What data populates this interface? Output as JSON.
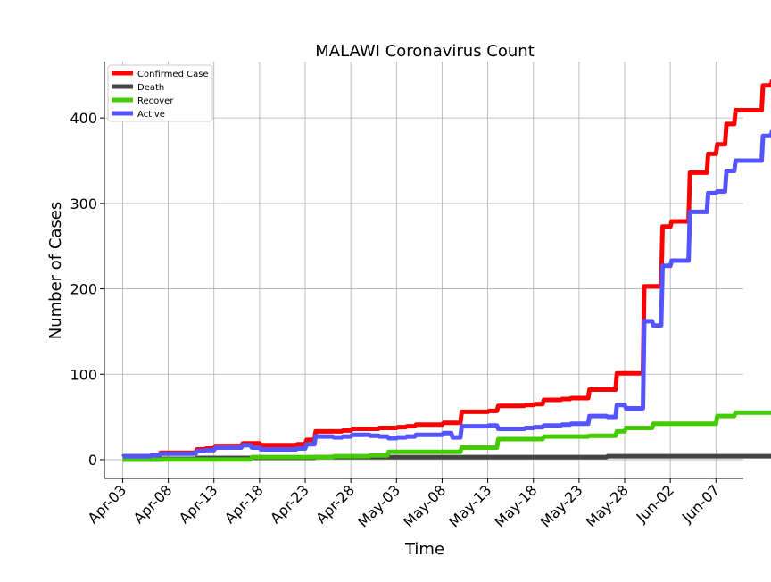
{
  "chart_data": {
    "type": "line",
    "title": "MALAWI Coronavirus Count",
    "xlabel": "Time",
    "ylabel": "Number of Cases",
    "x_start": "2020-04-03",
    "x_end": "2020-06-09",
    "xlim": [
      "2020-04-01",
      "2020-06-10"
    ],
    "ylim": [
      -22,
      466
    ],
    "grid": true,
    "legend_position": "top-left",
    "x_ticks": [
      {
        "date": "2020-04-03",
        "label": "Apr-03"
      },
      {
        "date": "2020-04-08",
        "label": "Apr-08"
      },
      {
        "date": "2020-04-13",
        "label": "Apr-13"
      },
      {
        "date": "2020-04-18",
        "label": "Apr-18"
      },
      {
        "date": "2020-04-23",
        "label": "Apr-23"
      },
      {
        "date": "2020-04-28",
        "label": "Apr-28"
      },
      {
        "date": "2020-05-03",
        "label": "May-03"
      },
      {
        "date": "2020-05-08",
        "label": "May-08"
      },
      {
        "date": "2020-05-13",
        "label": "May-13"
      },
      {
        "date": "2020-05-18",
        "label": "May-18"
      },
      {
        "date": "2020-05-23",
        "label": "May-23"
      },
      {
        "date": "2020-05-28",
        "label": "May-28"
      },
      {
        "date": "2020-06-02",
        "label": "Jun-02"
      },
      {
        "date": "2020-06-07",
        "label": "Jun-07"
      }
    ],
    "y_ticks": [
      0,
      100,
      200,
      300,
      400
    ],
    "series": [
      {
        "name": "Confirmed Case",
        "color": "#ff0000",
        "values": [
          3,
          4,
          4,
          4,
          5,
          8,
          8,
          8,
          8,
          12,
          13,
          16,
          16,
          16,
          19,
          19,
          17,
          17,
          17,
          17,
          18,
          23,
          33,
          33,
          33,
          34,
          36,
          36,
          36,
          37,
          37,
          38,
          39,
          41,
          41,
          41,
          43,
          43,
          56,
          56,
          56,
          57,
          63,
          63,
          63,
          64,
          65,
          70,
          70,
          71,
          72,
          72,
          82,
          82,
          82,
          101,
          101,
          101,
          203,
          203,
          273,
          279,
          279,
          336,
          336,
          358,
          369,
          393,
          409,
          409,
          409,
          438,
          443
        ]
      },
      {
        "name": "Death",
        "color": "#444444",
        "values": [
          0,
          0,
          0,
          0,
          0,
          1,
          1,
          1,
          1,
          2,
          2,
          2,
          2,
          2,
          2,
          2,
          2,
          2,
          2,
          2,
          2,
          2,
          3,
          3,
          3,
          3,
          3,
          3,
          3,
          3,
          3,
          3,
          3,
          3,
          3,
          3,
          3,
          3,
          3,
          3,
          3,
          3,
          3,
          3,
          3,
          3,
          3,
          3,
          3,
          3,
          3,
          3,
          3,
          3,
          4,
          4,
          4,
          4,
          4,
          4,
          4,
          4,
          4,
          4,
          4,
          4,
          4,
          4,
          4,
          4,
          4,
          4,
          4
        ]
      },
      {
        "name": "Recover",
        "color": "#44cc00",
        "values": [
          0,
          0,
          0,
          0,
          0,
          0,
          0,
          0,
          0,
          0,
          0,
          0,
          0,
          0,
          0,
          3,
          3,
          3,
          3,
          3,
          3,
          3,
          3,
          3,
          4,
          4,
          4,
          4,
          5,
          5,
          9,
          9,
          9,
          9,
          9,
          9,
          9,
          9,
          14,
          14,
          14,
          14,
          24,
          24,
          24,
          24,
          24,
          27,
          27,
          27,
          27,
          27,
          28,
          28,
          28,
          33,
          37,
          37,
          37,
          42,
          42,
          42,
          42,
          42,
          42,
          42,
          51,
          51,
          55,
          55,
          55,
          55,
          55
        ]
      },
      {
        "name": "Active",
        "color": "#5555ff",
        "values": [
          3,
          4,
          4,
          4,
          5,
          7,
          7,
          7,
          7,
          10,
          11,
          14,
          14,
          14,
          17,
          14,
          12,
          12,
          12,
          12,
          13,
          18,
          27,
          27,
          26,
          27,
          29,
          29,
          28,
          27,
          25,
          26,
          27,
          29,
          29,
          29,
          31,
          26,
          39,
          39,
          39,
          40,
          36,
          36,
          36,
          37,
          38,
          40,
          40,
          41,
          42,
          42,
          51,
          51,
          50,
          64,
          60,
          60,
          162,
          157,
          227,
          233,
          233,
          290,
          290,
          312,
          314,
          338,
          350,
          350,
          350,
          379,
          384
        ]
      }
    ]
  }
}
